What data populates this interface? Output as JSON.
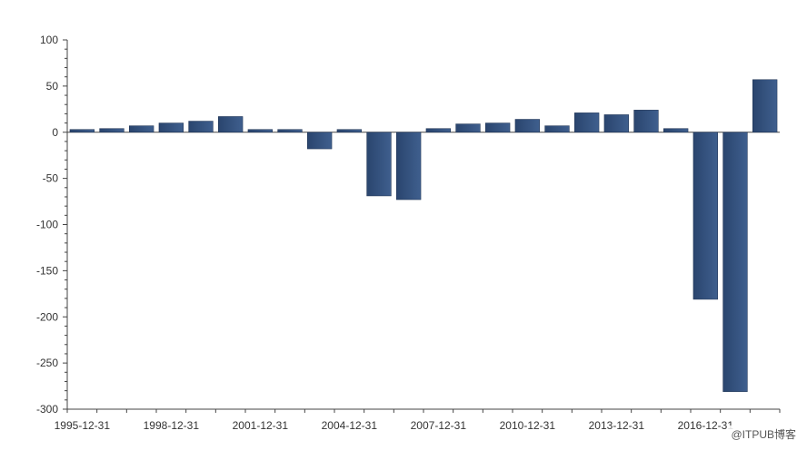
{
  "chart_data": {
    "type": "bar",
    "x": [
      "1995-12-31",
      "1996-12-31",
      "1997-12-31",
      "1998-12-31",
      "1999-12-31",
      "2000-12-31",
      "2001-12-31",
      "2002-12-31",
      "2003-12-31",
      "2004-12-31",
      "2005-12-31",
      "2006-12-31",
      "2007-12-31",
      "2008-12-31",
      "2009-12-31",
      "2010-12-31",
      "2011-12-31",
      "2012-12-31",
      "2013-12-31",
      "2014-12-31",
      "2015-12-31",
      "2016-12-31",
      "2017-12-31",
      "2018-12-31"
    ],
    "values": [
      3,
      4,
      7,
      10,
      12,
      17,
      3,
      3,
      -18,
      3,
      -69,
      -73,
      4,
      9,
      10,
      14,
      7,
      21,
      19,
      24,
      4,
      -181,
      -281,
      57
    ],
    "x_tick_labels": [
      "1995-12-31",
      "1998-12-31",
      "2001-12-31",
      "2004-12-31",
      "2007-12-31",
      "2010-12-31",
      "2013-12-31",
      "2016-12-31"
    ],
    "y_ticks": [
      100,
      50,
      0,
      -50,
      -100,
      -150,
      -200,
      -250,
      -300
    ],
    "ylim": [
      -300,
      100
    ],
    "title": "",
    "xlabel": "",
    "ylabel": "",
    "bar_color": "#2a456e",
    "bar_color_light": "#3f5f8e",
    "grid": false,
    "legend": "none"
  },
  "watermark": "@ITPUB博客"
}
